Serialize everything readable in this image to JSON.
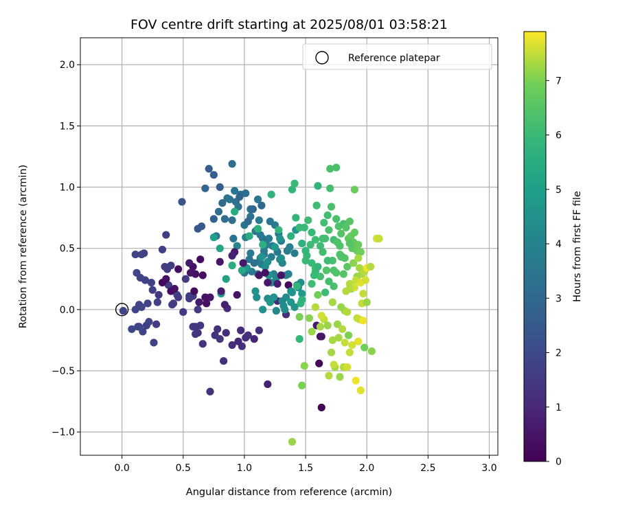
{
  "chart_data": {
    "type": "scatter",
    "title": "FOV centre drift starting at 2025/08/01 03:58:21",
    "xlabel": "Angular distance from reference (arcmin)",
    "ylabel": "Rotation from reference (arcmin)",
    "xlim": [
      -0.34,
      3.07
    ],
    "ylim": [
      -1.19,
      2.22
    ],
    "xticks": [
      0.0,
      0.5,
      1.0,
      1.5,
      2.0,
      2.5,
      3.0
    ],
    "xtick_labels": [
      "0.0",
      "0.5",
      "1.0",
      "1.5",
      "2.0",
      "2.5",
      "3.0"
    ],
    "yticks": [
      -1.0,
      -0.5,
      0.0,
      0.5,
      1.0,
      1.5,
      2.0
    ],
    "ytick_labels": [
      "−1.0",
      "−0.5",
      "0.0",
      "0.5",
      "1.0",
      "1.5",
      "2.0"
    ],
    "grid": true,
    "legend": {
      "placement": "upper right",
      "entries": [
        "Reference platepar"
      ]
    },
    "reference_point": {
      "x": 0.0,
      "y": 0.0
    },
    "colorbar": {
      "label": "Hours from first FF file",
      "min": 0,
      "max": 7.9,
      "ticks": [
        0,
        1,
        2,
        3,
        4,
        5,
        6,
        7
      ],
      "tick_labels": [
        "0",
        "1",
        "2",
        "3",
        "4",
        "5",
        "6",
        "7"
      ],
      "colormap": "viridis"
    },
    "series": [
      {
        "hours": [
          1.9,
          1.9,
          1.8,
          1.85,
          1.75,
          1.8,
          1.7,
          1.7,
          1.6,
          1.85,
          1.5,
          1.55,
          1.75,
          1.7,
          1.6,
          1.8,
          1.55,
          1.7,
          1.9,
          1.85,
          1.75,
          1.65,
          1.7,
          1.6,
          1.7,
          1.8,
          1.55,
          1.5,
          1.6,
          1.65,
          1.9,
          1.75,
          1.55,
          1.6,
          1.55,
          1.8,
          1.6,
          1.55,
          1.6,
          1.85,
          1.45,
          1.4,
          1.35,
          1.45,
          1.3,
          1.35,
          1.2,
          1.4,
          1.25,
          1.2,
          1.3,
          1.1,
          1.15,
          1.0,
          1.1,
          0.9,
          1.15,
          1.05,
          1.0,
          0.8,
          1.2,
          1.05,
          1.2,
          0.6,
          0.1,
          0.1,
          0.1,
          0.2,
          2.6,
          2.3,
          2.6,
          2.9,
          2.4,
          2.6,
          2.7,
          2.5,
          3.0,
          3.2,
          3.4,
          3.2,
          3.3,
          3.5,
          3.1,
          3.2,
          3.1,
          3.3,
          3.4,
          3.2,
          3.3,
          3.5,
          3.4,
          2.9,
          3.0,
          3.3,
          3.4,
          3.3,
          3.0,
          3.1,
          3.2,
          3.6,
          3.7,
          3.5,
          3.4,
          3.5,
          3.6,
          3.5,
          3.4,
          3.6,
          3.7,
          3.6,
          3.6,
          3.8,
          3.7,
          3.5,
          3.9,
          3.6,
          3.7,
          4.0,
          3.5,
          3.7,
          3.8,
          4.0,
          3.9,
          3.8,
          4.1,
          3.6,
          3.2,
          3.3,
          3.5,
          3.6,
          3.8,
          3.9,
          4.0,
          4.1,
          4.2,
          4.4,
          4.3,
          4.1,
          4.4,
          4.5,
          4.2,
          4.6,
          4.3,
          4.2,
          4.5,
          4.4,
          4.6,
          4.3,
          4.8,
          4.5,
          4.4,
          4.6,
          4.7,
          4.5,
          4.4,
          4.7,
          4.8,
          4.6,
          4.5,
          4.3,
          4.6,
          4.1,
          4.4,
          3.9,
          5.0,
          5.1,
          5.5,
          5.3,
          5.0,
          5.2,
          5.4,
          5.5,
          5.6,
          5.6,
          5.7,
          5.8,
          5.9,
          5.8,
          5.7,
          6.0,
          5.9,
          6.0,
          5.8,
          6.1,
          5.8,
          5.7,
          6.0,
          6.2,
          6.1,
          6.0,
          6.2,
          6.1,
          6.3,
          6.2,
          6.0,
          6.3,
          6.1,
          6.4,
          6.2,
          6.3,
          6.5,
          6.1,
          5.9,
          6.3,
          6.4,
          5.7,
          6.2,
          5.9,
          6.5,
          6.1,
          6.3,
          6.6,
          6.4,
          6.5,
          6.2,
          6.0,
          6.6,
          6.4,
          6.1,
          6.3,
          6.5,
          6.7,
          6.4,
          6.2,
          6.8,
          6.7,
          6.5,
          6.4,
          6.7,
          6.6,
          6.8,
          6.9,
          6.3,
          5.8,
          6.2,
          6.0,
          6.4,
          6.1,
          6.3,
          6.5,
          5.9,
          6.4,
          6.8,
          6.1,
          6.6,
          5.7,
          6.0,
          6.2,
          6.4,
          6.5,
          7.1,
          7.2,
          7.3,
          7.3,
          7.4,
          7.5,
          7.4,
          7.6,
          7.7,
          7.5,
          7.4,
          7.6,
          7.8,
          7.5,
          7.3,
          7.2,
          7.4,
          7.6,
          7.7,
          7.4,
          7.3,
          7.5,
          7.8,
          7.2,
          7.4,
          7.3,
          7.5,
          7.6,
          7.7,
          7.5,
          7.3,
          7.4,
          7.2,
          7.6,
          7.8,
          7.5,
          7.4,
          7.7,
          7.3,
          7.5,
          7.6,
          7.4,
          7.3,
          7.2,
          7.1,
          7.0,
          7.2,
          6.9,
          7.0,
          7.1,
          7.2,
          7.3,
          7.0,
          6.9,
          7.1,
          7.2,
          7.4,
          7.6,
          7.3,
          7.5,
          0.5,
          0.4,
          0.3,
          0.4,
          0.3,
          0.6,
          0.7,
          0.8,
          0.5,
          0.4,
          0.5,
          0.6,
          0.5,
          0.4,
          0.6,
          0.3,
          0.2,
          0.3,
          0.8,
          0.5,
          0.4,
          0.3,
          0.6,
          0.7,
          0.5,
          0.6,
          0.4,
          0.3,
          0.5
        ],
        "x": [
          0.01,
          0.11,
          0.14,
          0.16,
          0.2,
          0.22,
          0.13,
          0.26,
          0.28,
          0.12,
          0.3,
          0.35,
          0.19,
          0.24,
          0.4,
          0.15,
          0.38,
          0.25,
          0.45,
          0.11,
          0.18,
          0.36,
          0.33,
          0.42,
          0.29,
          0.21,
          0.46,
          0.5,
          0.41,
          0.37,
          0.08,
          0.17,
          0.55,
          0.52,
          0.58,
          0.16,
          0.6,
          0.55,
          0.62,
          0.14,
          0.64,
          0.6,
          0.62,
          0.58,
          0.76,
          0.66,
          0.83,
          0.8,
          0.78,
          0.98,
          0.72,
          0.85,
          1.01,
          0.95,
          0.9,
          1.08,
          1.12,
          0.97,
          0.86,
          1.19,
          1.03,
          1.27,
          1.34,
          1.59,
          1.62,
          1.61,
          1.63,
          1.36,
          0.71,
          0.49,
          0.75,
          0.68,
          0.62,
          0.8,
          0.75,
          0.65,
          0.82,
          0.9,
          0.92,
          0.79,
          0.86,
          0.88,
          0.84,
          0.77,
          0.97,
          0.93,
          0.91,
          1.01,
          1.05,
          1.11,
          0.95,
          0.96,
          1.14,
          1.05,
          1.0,
          0.9,
          1.07,
          1.03,
          1.1,
          1.12,
          1.2,
          1.17,
          1.15,
          1.09,
          1.25,
          1.21,
          1.28,
          1.23,
          1.16,
          1.3,
          1.27,
          1.18,
          1.35,
          1.12,
          1.37,
          1.13,
          1.22,
          1.29,
          1.0,
          1.06,
          1.14,
          1.24,
          1.36,
          1.41,
          1.31,
          1.05,
          1.11,
          1.08,
          1.04,
          1.13,
          1.16,
          1.22,
          1.34,
          1.26,
          1.38,
          1.43,
          1.34,
          1.44,
          1.32,
          1.24,
          1.31,
          1.39,
          1.19,
          1.26,
          1.41,
          1.46,
          1.38,
          1.33,
          1.47,
          1.2,
          1.1,
          1.15,
          1.21,
          1.09,
          1.3,
          1.02,
          1.25,
          1.42,
          1.29,
          1.17,
          1.14,
          0.94,
          1.19,
          1.01,
          0.81,
          0.85,
          0.9,
          0.98,
          0.75,
          0.8,
          0.92,
          1.04,
          1.11,
          1.15,
          1.22,
          1.28,
          1.39,
          1.42,
          1.38,
          1.45,
          1.5,
          1.55,
          1.43,
          1.52,
          1.6,
          1.47,
          1.41,
          1.65,
          1.58,
          1.49,
          1.68,
          1.55,
          1.71,
          1.64,
          1.5,
          1.75,
          1.58,
          1.77,
          1.62,
          1.7,
          1.79,
          1.54,
          1.45,
          1.81,
          1.67,
          1.46,
          1.73,
          1.51,
          1.83,
          1.62,
          1.72,
          1.85,
          1.78,
          1.86,
          1.66,
          1.55,
          1.88,
          1.76,
          1.59,
          1.69,
          1.82,
          1.9,
          1.78,
          1.64,
          1.92,
          1.87,
          1.8,
          1.75,
          1.89,
          1.84,
          1.93,
          1.95,
          1.73,
          1.5,
          1.7,
          1.58,
          1.79,
          1.66,
          1.75,
          1.86,
          1.6,
          1.73,
          1.9,
          1.68,
          1.87,
          1.47,
          1.57,
          1.69,
          1.76,
          1.81,
          1.89,
          1.92,
          1.94,
          1.96,
          1.86,
          1.91,
          1.98,
          1.9,
          1.95,
          1.97,
          1.86,
          1.99,
          2.0,
          1.96,
          1.82,
          1.79,
          1.84,
          1.94,
          2.03,
          1.83,
          1.72,
          1.92,
          1.97,
          1.76,
          1.8,
          1.77,
          1.82,
          1.88,
          1.93,
          1.86,
          1.74,
          1.81,
          1.78,
          1.84,
          1.91,
          1.73,
          1.69,
          1.95,
          1.71,
          1.65,
          1.63,
          1.58,
          1.62,
          1.55,
          1.49,
          1.47,
          1.39,
          1.6,
          1.45,
          1.53,
          1.68,
          1.72,
          1.85,
          1.98,
          2.04,
          2.0,
          2.03,
          2.08,
          1.93,
          2.1,
          0.72,
          0.68,
          0.66,
          0.6,
          0.59,
          0.63,
          0.81,
          0.84,
          0.94,
          1.17,
          1.63,
          0.92,
          0.8,
          0.58,
          0.55,
          0.64,
          0.33,
          0.4,
          0.9,
          0.56,
          0.43,
          0.36,
          0.99,
          1.27,
          1.12,
          1.19,
          0.69,
          0.46,
          1.3
        ],
        "y": [
          -0.01,
          0.0,
          0.04,
          0.02,
          -0.13,
          -0.1,
          -0.14,
          -0.27,
          -0.12,
          0.3,
          0.12,
          0.35,
          0.24,
          0.22,
          0.36,
          0.26,
          0.2,
          0.16,
          0.12,
          0.45,
          0.46,
          0.61,
          0.49,
          0.05,
          0.06,
          0.05,
          0.1,
          -0.02,
          0.04,
          0.33,
          -0.16,
          -0.18,
          0.09,
          0.25,
          0.11,
          0.45,
          -0.14,
          0.11,
          0.0,
          -0.14,
          -0.13,
          -0.2,
          -0.19,
          -0.14,
          -0.21,
          -0.28,
          -0.42,
          -0.24,
          -0.16,
          -0.3,
          -0.67,
          -0.19,
          -0.23,
          -0.26,
          -0.29,
          -0.24,
          -0.17,
          -0.17,
          0.01,
          -0.61,
          -0.21,
          0.07,
          -0.04,
          -0.13,
          -0.22,
          -0.44,
          -0.8,
          0.2,
          1.15,
          0.88,
          1.1,
          0.99,
          0.66,
          1.0,
          0.74,
          0.68,
          0.87,
          1.19,
          0.97,
          0.8,
          0.91,
          0.9,
          0.74,
          0.6,
          0.94,
          0.88,
          0.58,
          0.95,
          0.82,
          0.9,
          0.84,
          0.92,
          0.85,
          0.76,
          0.69,
          0.73,
          0.82,
          0.72,
          0.65,
          0.73,
          0.58,
          0.55,
          0.58,
          0.64,
          0.69,
          0.72,
          0.62,
          0.52,
          0.45,
          0.56,
          0.47,
          0.53,
          0.48,
          0.39,
          0.51,
          0.61,
          0.43,
          0.41,
          0.3,
          0.31,
          0.37,
          0.29,
          0.29,
          0.46,
          0.38,
          0.46,
          0.29,
          0.38,
          0.41,
          0.42,
          0.48,
          0.22,
          0.28,
          0.26,
          0.15,
          0.2,
          0.1,
          0.18,
          0.03,
          0.1,
          0.07,
          0.14,
          0.09,
          -0.01,
          0.02,
          0.22,
          0.06,
          0.0,
          0.13,
          0.28,
          0.1,
          0.0,
          0.06,
          0.15,
          0.42,
          0.34,
          0.51,
          0.65,
          0.58,
          0.35,
          0.43,
          0.52,
          0.39,
          0.59,
          0.13,
          0.25,
          0.36,
          0.32,
          0.59,
          0.5,
          0.8,
          0.6,
          0.66,
          0.53,
          0.94,
          0.65,
          0.98,
          0.75,
          0.6,
          0.67,
          0.48,
          0.63,
          0.19,
          0.73,
          1.01,
          0.54,
          1.03,
          0.71,
          0.57,
          0.67,
          0.77,
          0.21,
          0.84,
          0.47,
          0.4,
          0.74,
          0.34,
          0.68,
          0.27,
          1.15,
          0.62,
          0.53,
          -0.24,
          0.7,
          0.32,
          0.05,
          0.57,
          0.44,
          0.67,
          0.52,
          0.4,
          0.58,
          0.45,
          0.72,
          0.58,
          0.38,
          0.5,
          0.55,
          0.85,
          0.65,
          0.42,
          0.63,
          0.52,
          0.58,
          0.48,
          0.6,
          0.43,
          0.3,
          0.55,
          0.35,
          0.53,
          0.47,
          0.19,
          0.48,
          0.99,
          0.31,
          0.43,
          0.14,
          1.16,
          0.54,
          0.35,
          0.32,
          0.98,
          0.4,
          0.17,
          0.08,
          0.28,
          0.23,
          0.55,
          0.29,
          0.38,
          0.27,
          0.34,
          0.29,
          0.21,
          0.24,
          0.31,
          0.18,
          0.22,
          0.13,
          0.17,
          0.24,
          0.34,
          0.05,
          -0.01,
          0.02,
          -0.02,
          -0.08,
          0.35,
          0.15,
          0.06,
          -0.07,
          -0.09,
          -0.12,
          -0.16,
          -0.23,
          -0.27,
          -0.29,
          -0.26,
          -0.35,
          -0.47,
          -0.47,
          -0.55,
          -0.47,
          -0.58,
          -0.45,
          -0.54,
          -0.66,
          -0.35,
          -0.08,
          -0.05,
          0.02,
          -0.14,
          -0.18,
          -0.46,
          -0.62,
          -1.08,
          0.12,
          -0.06,
          -0.07,
          -0.13,
          -0.25,
          -0.21,
          -0.31,
          -0.34,
          0.06,
          0.35,
          0.58,
          0.42,
          0.58,
          0.1,
          0.1,
          0.28,
          0.29,
          0.15,
          0.06,
          0.15,
          0.04,
          0.12,
          0.3,
          -0.22,
          0.47,
          0.39,
          0.35,
          0.38,
          0.41,
          0.22,
          0.15,
          0.44,
          0.3,
          0.17,
          0.25,
          0.38,
          0.21,
          0.28,
          0.22,
          0.05,
          0.33,
          0.28
        ]
      }
    ]
  }
}
